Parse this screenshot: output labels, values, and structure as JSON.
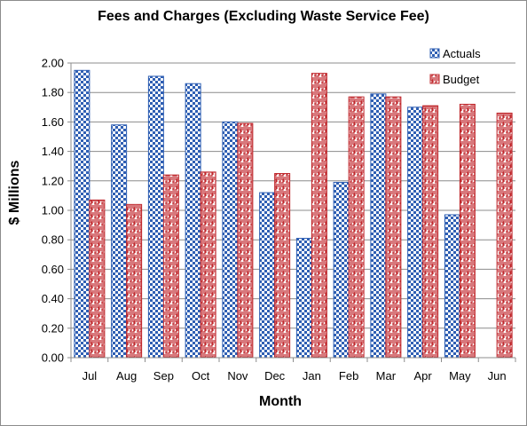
{
  "chart_data": {
    "type": "bar",
    "title": "Fees and Charges (Excluding  Waste Service Fee)",
    "xlabel": "Month",
    "ylabel": "$ Millions",
    "categories": [
      "Jul",
      "Aug",
      "Sep",
      "Oct",
      "Nov",
      "Dec",
      "Jan",
      "Feb",
      "Mar",
      "Apr",
      "May",
      "Jun"
    ],
    "ylim": [
      0,
      2.0
    ],
    "yticks": [
      "0.00",
      "0.20",
      "0.40",
      "0.60",
      "0.80",
      "1.00",
      "1.20",
      "1.40",
      "1.60",
      "1.80",
      "2.00"
    ],
    "grid": true,
    "legend_position": "top-right",
    "series": [
      {
        "name": "Actuals",
        "color": "#2f5fb3",
        "pattern": "checkerboard",
        "values": [
          1.95,
          1.58,
          1.91,
          1.86,
          1.6,
          1.12,
          0.81,
          1.19,
          1.79,
          1.7,
          0.97,
          null
        ]
      },
      {
        "name": "Budget",
        "color": "#c0282d",
        "pattern": "maze",
        "values": [
          1.07,
          1.04,
          1.24,
          1.26,
          1.59,
          1.25,
          1.93,
          1.77,
          1.77,
          1.71,
          1.72,
          1.66
        ]
      }
    ]
  }
}
